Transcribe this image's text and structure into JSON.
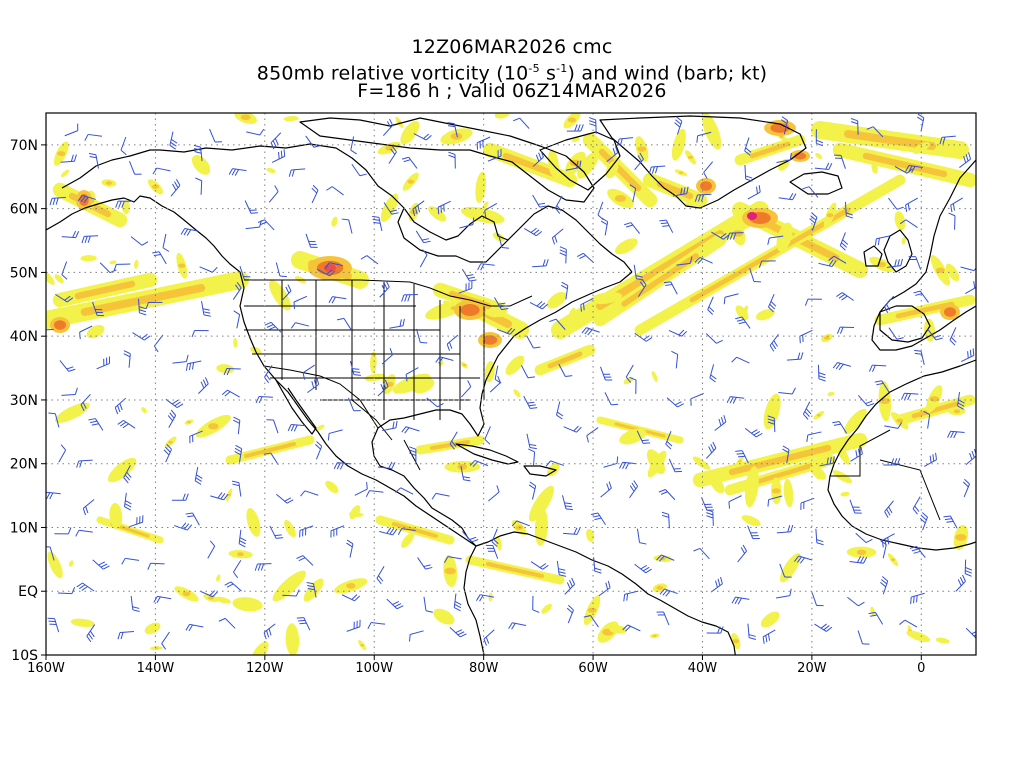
{
  "title": {
    "line1": "12Z06MAR2026 cmc",
    "line2_pre": "850mb relative vorticity (10",
    "line2_exp1": "-5",
    "line2_mid": " s",
    "line2_exp2": "-1",
    "line2_post": ") and wind (barb; kt)",
    "line3": "F=186 h ; Valid 06Z14MAR2026"
  },
  "map": {
    "projection": "cylindrical-equidistant",
    "lon_range": [
      -160,
      10
    ],
    "lat_range": [
      -10,
      75
    ],
    "grid_lines": "dotted",
    "colors": {
      "vort_low": "#f2f24a",
      "vort_mid": "#f6c43a",
      "vort_high": "#ef7a2a",
      "vort_max": "#e0207a",
      "barb": "#3350d8",
      "coast": "#000000"
    }
  },
  "lon_labels": [
    "160W",
    "140W",
    "120W",
    "100W",
    "80W",
    "60W",
    "40W",
    "20W",
    "0"
  ],
  "lat_labels": [
    "70N",
    "60N",
    "50N",
    "40N",
    "30N",
    "20N",
    "10N",
    "EQ",
    "10S"
  ]
}
